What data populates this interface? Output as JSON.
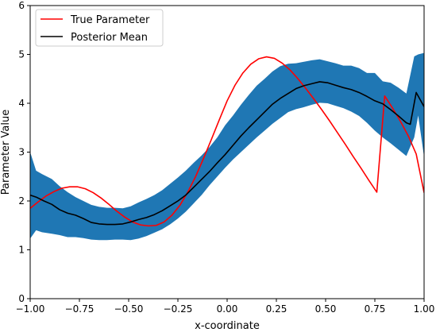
{
  "chart_data": {
    "type": "line",
    "title": "",
    "xlabel": "x-coordinate",
    "ylabel": "Parameter Value",
    "xlim": [
      -1.0,
      1.0
    ],
    "ylim": [
      0,
      6
    ],
    "grid": false,
    "legend_position": "top-left",
    "x_ticks": [
      -1.0,
      -0.75,
      -0.5,
      -0.25,
      0.0,
      0.25,
      0.5,
      0.75,
      1.0
    ],
    "x_tick_labels": [
      "−1.00",
      "−0.75",
      "−0.50",
      "−0.25",
      "0.00",
      "0.25",
      "0.50",
      "0.75",
      "1.00"
    ],
    "y_ticks": [
      0,
      1,
      2,
      3,
      4,
      5,
      6
    ],
    "y_tick_labels": [
      "0",
      "1",
      "2",
      "3",
      "4",
      "5",
      "6"
    ],
    "legend": [
      {
        "label": "True Parameter",
        "color": "#ff0000"
      },
      {
        "label": "Posterior Mean",
        "color": "#000000"
      }
    ],
    "band": {
      "color": "#1f77b4",
      "x": [
        -1.0,
        -0.97,
        -0.94,
        -0.89,
        -0.85,
        -0.81,
        -0.77,
        -0.73,
        -0.69,
        -0.65,
        -0.61,
        -0.57,
        -0.53,
        -0.49,
        -0.45,
        -0.41,
        -0.37,
        -0.33,
        -0.29,
        -0.25,
        -0.21,
        -0.17,
        -0.13,
        -0.09,
        -0.05,
        -0.01,
        0.03,
        0.07,
        0.11,
        0.15,
        0.19,
        0.23,
        0.27,
        0.31,
        0.35,
        0.39,
        0.43,
        0.47,
        0.51,
        0.55,
        0.59,
        0.63,
        0.67,
        0.71,
        0.75,
        0.79,
        0.83,
        0.87,
        0.91,
        0.95,
        0.97,
        1.0
      ],
      "upper": [
        3.0,
        2.62,
        2.55,
        2.45,
        2.3,
        2.18,
        2.08,
        2.0,
        1.92,
        1.88,
        1.86,
        1.86,
        1.85,
        1.89,
        1.97,
        2.04,
        2.12,
        2.22,
        2.35,
        2.48,
        2.62,
        2.78,
        2.93,
        3.1,
        3.3,
        3.55,
        3.75,
        3.97,
        4.17,
        4.36,
        4.5,
        4.65,
        4.76,
        4.81,
        4.82,
        4.85,
        4.88,
        4.9,
        4.86,
        4.82,
        4.77,
        4.77,
        4.72,
        4.62,
        4.62,
        4.45,
        4.42,
        4.32,
        4.2,
        4.96,
        5.0,
        5.03
      ],
      "lower": [
        1.23,
        1.4,
        1.36,
        1.33,
        1.3,
        1.26,
        1.26,
        1.24,
        1.21,
        1.2,
        1.2,
        1.21,
        1.21,
        1.2,
        1.23,
        1.28,
        1.35,
        1.42,
        1.52,
        1.64,
        1.78,
        1.95,
        2.12,
        2.32,
        2.5,
        2.68,
        2.85,
        3.0,
        3.15,
        3.3,
        3.44,
        3.58,
        3.7,
        3.82,
        3.88,
        3.92,
        3.97,
        4.01,
        4.0,
        3.95,
        3.9,
        3.83,
        3.74,
        3.6,
        3.44,
        3.3,
        3.18,
        3.05,
        2.92,
        3.3,
        3.75,
        2.9
      ]
    },
    "series": [
      {
        "name": "True Parameter",
        "color": "#ff0000",
        "x": [
          -1.0,
          -0.96,
          -0.92,
          -0.88,
          -0.84,
          -0.8,
          -0.76,
          -0.72,
          -0.68,
          -0.64,
          -0.6,
          -0.56,
          -0.52,
          -0.48,
          -0.44,
          -0.4,
          -0.36,
          -0.32,
          -0.28,
          -0.24,
          -0.2,
          -0.16,
          -0.12,
          -0.08,
          -0.04,
          0.0,
          0.04,
          0.08,
          0.12,
          0.16,
          0.2,
          0.24,
          0.28,
          0.32,
          0.36,
          0.4,
          0.44,
          0.48,
          0.52,
          0.56,
          0.6,
          0.64,
          0.68,
          0.72,
          0.76,
          0.8,
          0.84,
          0.88,
          0.92,
          0.96,
          1.0
        ],
        "values": [
          1.85,
          1.98,
          2.1,
          2.19,
          2.26,
          2.29,
          2.29,
          2.25,
          2.17,
          2.06,
          1.93,
          1.79,
          1.67,
          1.57,
          1.51,
          1.49,
          1.5,
          1.57,
          1.71,
          1.91,
          2.18,
          2.5,
          2.87,
          3.26,
          3.66,
          4.05,
          4.37,
          4.62,
          4.8,
          4.91,
          4.95,
          4.92,
          4.82,
          4.68,
          4.5,
          4.3,
          4.09,
          3.87,
          3.64,
          3.4,
          3.16,
          2.91,
          2.67,
          2.42,
          2.18,
          4.15,
          3.9,
          3.63,
          3.33,
          2.96,
          2.17
        ]
      },
      {
        "name": "Posterior Mean",
        "color": "#000000",
        "x": [
          -1.0,
          -0.97,
          -0.93,
          -0.89,
          -0.85,
          -0.81,
          -0.77,
          -0.73,
          -0.69,
          -0.65,
          -0.61,
          -0.57,
          -0.53,
          -0.49,
          -0.45,
          -0.41,
          -0.37,
          -0.33,
          -0.29,
          -0.25,
          -0.21,
          -0.17,
          -0.13,
          -0.09,
          -0.05,
          -0.01,
          0.03,
          0.07,
          0.11,
          0.15,
          0.19,
          0.23,
          0.27,
          0.31,
          0.35,
          0.39,
          0.43,
          0.47,
          0.51,
          0.55,
          0.59,
          0.63,
          0.67,
          0.71,
          0.75,
          0.79,
          0.83,
          0.87,
          0.91,
          0.93,
          0.96,
          1.0
        ],
        "values": [
          2.12,
          2.08,
          2.0,
          1.93,
          1.82,
          1.75,
          1.71,
          1.64,
          1.56,
          1.53,
          1.52,
          1.52,
          1.53,
          1.57,
          1.62,
          1.66,
          1.72,
          1.8,
          1.9,
          2.0,
          2.12,
          2.28,
          2.44,
          2.6,
          2.78,
          2.95,
          3.14,
          3.33,
          3.5,
          3.66,
          3.82,
          3.98,
          4.1,
          4.2,
          4.3,
          4.36,
          4.4,
          4.44,
          4.42,
          4.37,
          4.32,
          4.28,
          4.22,
          4.14,
          4.05,
          3.99,
          3.87,
          3.74,
          3.6,
          3.57,
          4.22,
          3.93
        ]
      }
    ]
  }
}
